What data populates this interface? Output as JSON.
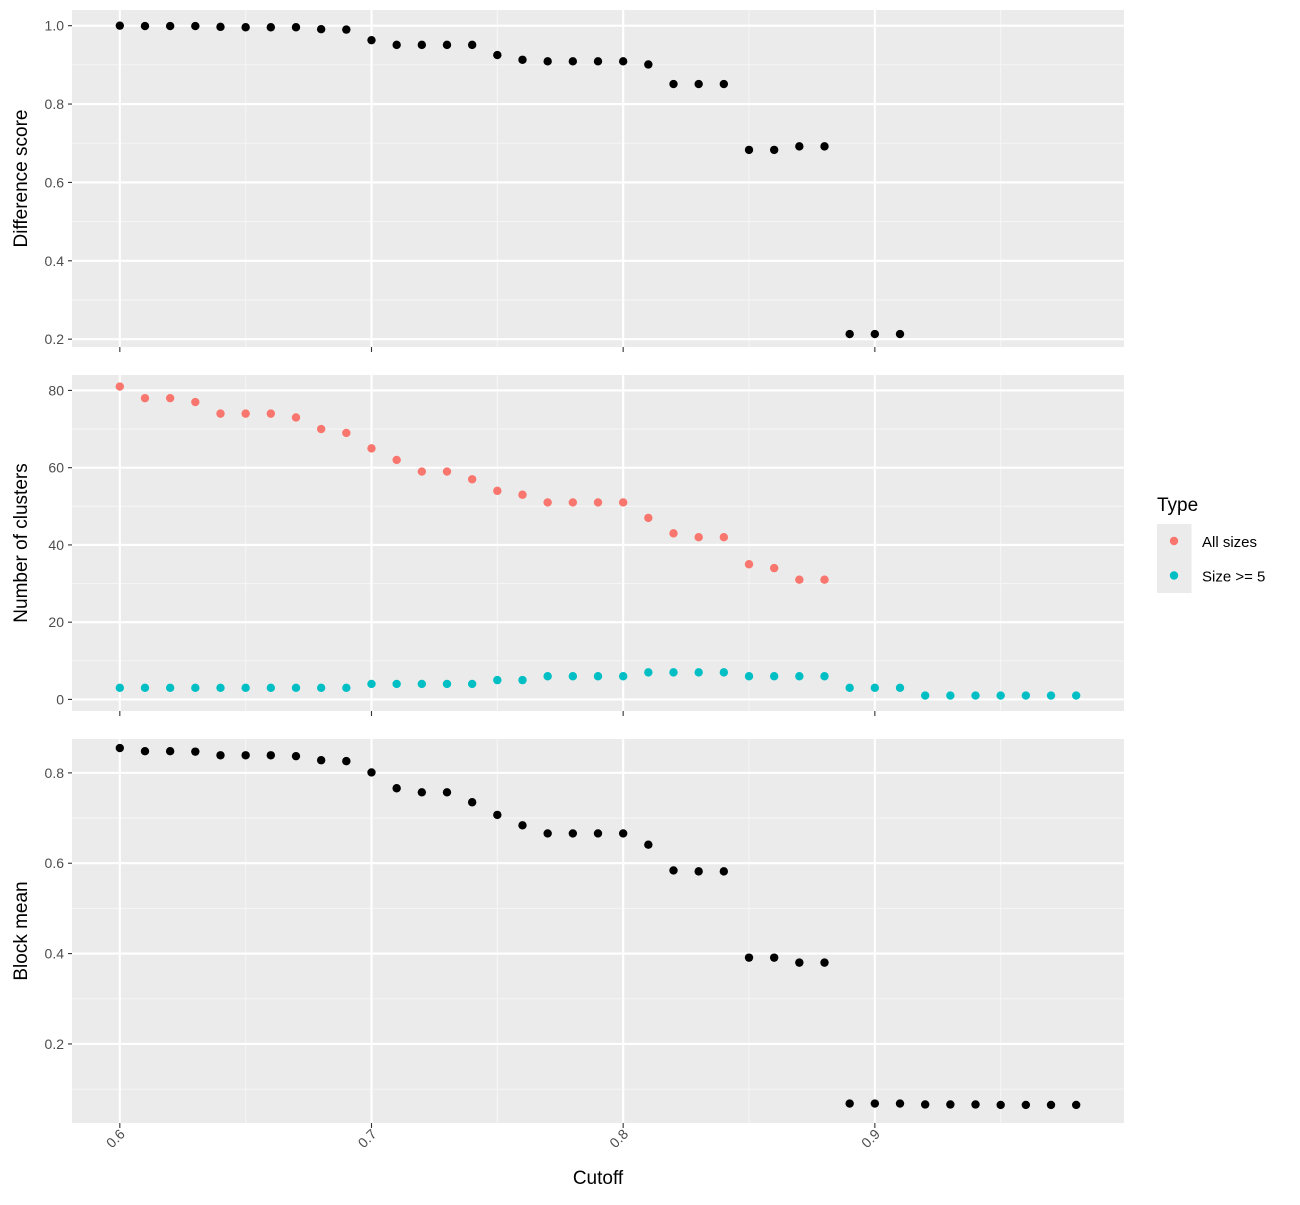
{
  "colors": {
    "panel_bg": "#EBEBEB",
    "grid_major": "#FFFFFF",
    "grid_minor": "#F5F5F5",
    "point_default": "#000000",
    "tick_text": "#4D4D4D",
    "title_text": "#000000"
  },
  "chart_data": [
    {
      "type": "scatter",
      "ylabel": "Difference score",
      "xlabel": "",
      "xlim": [
        0.581,
        0.999
      ],
      "ylim": [
        0.18,
        1.04
      ],
      "x_ticks": [
        0.6,
        0.7,
        0.8,
        0.9
      ],
      "y_ticks": [
        0.2,
        0.4,
        0.6,
        0.8,
        1.0
      ],
      "y_tick_labels": [
        "0.2",
        "0.4",
        "0.6",
        "0.8",
        "1.0"
      ],
      "grid": true,
      "x": [
        0.6,
        0.61,
        0.62,
        0.63,
        0.64,
        0.65,
        0.66,
        0.67,
        0.68,
        0.69,
        0.7,
        0.71,
        0.72,
        0.73,
        0.74,
        0.75,
        0.76,
        0.77,
        0.78,
        0.79,
        0.8,
        0.81,
        0.82,
        0.83,
        0.84,
        0.85,
        0.86,
        0.87,
        0.88,
        0.89,
        0.9,
        0.91
      ],
      "y": [
        1.0,
        0.999,
        0.999,
        0.999,
        0.997,
        0.996,
        0.996,
        0.996,
        0.991,
        0.99,
        0.963,
        0.951,
        0.951,
        0.951,
        0.951,
        0.925,
        0.913,
        0.909,
        0.909,
        0.909,
        0.909,
        0.901,
        0.851,
        0.851,
        0.851,
        0.683,
        0.683,
        0.692,
        0.692,
        0.213,
        0.213,
        0.213
      ]
    },
    {
      "type": "scatter",
      "ylabel": "Number of clusters",
      "xlabel": "",
      "xlim": [
        0.581,
        0.999
      ],
      "ylim": [
        -3,
        84
      ],
      "x_ticks": [
        0.6,
        0.7,
        0.8,
        0.9
      ],
      "y_ticks": [
        0,
        20,
        40,
        60,
        80
      ],
      "y_tick_labels": [
        "0",
        "20",
        "40",
        "60",
        "80"
      ],
      "grid": true,
      "legend": {
        "title": "Type",
        "placement": "right",
        "entries": [
          "All sizes",
          "Size >= 5"
        ]
      },
      "series": [
        {
          "name": "All sizes",
          "color": "#F8766D",
          "x": [
            0.6,
            0.61,
            0.62,
            0.63,
            0.64,
            0.65,
            0.66,
            0.67,
            0.68,
            0.69,
            0.7,
            0.71,
            0.72,
            0.73,
            0.74,
            0.75,
            0.76,
            0.77,
            0.78,
            0.79,
            0.8,
            0.81,
            0.82,
            0.83,
            0.84,
            0.85,
            0.86,
            0.87,
            0.88
          ],
          "y": [
            81,
            78,
            78,
            77,
            74,
            74,
            74,
            73,
            70,
            69,
            65,
            62,
            59,
            59,
            57,
            54,
            53,
            51,
            51,
            51,
            51,
            47,
            43,
            42,
            42,
            35,
            34,
            31,
            31
          ]
        },
        {
          "name": "Size >= 5",
          "color": "#00BFC4",
          "x": [
            0.6,
            0.61,
            0.62,
            0.63,
            0.64,
            0.65,
            0.66,
            0.67,
            0.68,
            0.69,
            0.7,
            0.71,
            0.72,
            0.73,
            0.74,
            0.75,
            0.76,
            0.77,
            0.78,
            0.79,
            0.8,
            0.81,
            0.82,
            0.83,
            0.84,
            0.85,
            0.86,
            0.87,
            0.88,
            0.89,
            0.9,
            0.91,
            0.92,
            0.93,
            0.94,
            0.95,
            0.96,
            0.97,
            0.98
          ],
          "y": [
            3,
            3,
            3,
            3,
            3,
            3,
            3,
            3,
            3,
            3,
            4,
            4,
            4,
            4,
            4,
            5,
            5,
            6,
            6,
            6,
            6,
            7,
            7,
            7,
            7,
            6,
            6,
            6,
            6,
            3,
            3,
            3,
            1,
            1,
            1,
            1,
            1,
            1,
            1
          ]
        }
      ]
    },
    {
      "type": "scatter",
      "ylabel": "Block mean",
      "xlabel": "Cutoff",
      "xlim": [
        0.581,
        0.999
      ],
      "ylim": [
        0.025,
        0.875
      ],
      "x_ticks": [
        0.6,
        0.7,
        0.8,
        0.9
      ],
      "x_tick_labels": [
        "0.6",
        "0.7",
        "0.8",
        "0.9"
      ],
      "y_ticks": [
        0.2,
        0.4,
        0.6,
        0.8
      ],
      "y_tick_labels": [
        "0.2",
        "0.4",
        "0.6",
        "0.8"
      ],
      "grid": true,
      "x": [
        0.6,
        0.61,
        0.62,
        0.63,
        0.64,
        0.65,
        0.66,
        0.67,
        0.68,
        0.69,
        0.7,
        0.71,
        0.72,
        0.73,
        0.74,
        0.75,
        0.76,
        0.77,
        0.78,
        0.79,
        0.8,
        0.81,
        0.82,
        0.83,
        0.84,
        0.85,
        0.86,
        0.87,
        0.88,
        0.89,
        0.9,
        0.91,
        0.92,
        0.93,
        0.94,
        0.95,
        0.96,
        0.97,
        0.98
      ],
      "y": [
        0.855,
        0.848,
        0.848,
        0.847,
        0.839,
        0.839,
        0.839,
        0.837,
        0.828,
        0.826,
        0.801,
        0.766,
        0.757,
        0.757,
        0.735,
        0.707,
        0.684,
        0.666,
        0.666,
        0.666,
        0.666,
        0.641,
        0.584,
        0.582,
        0.582,
        0.391,
        0.391,
        0.38,
        0.38,
        0.068,
        0.068,
        0.068,
        0.066,
        0.066,
        0.066,
        0.065,
        0.065,
        0.065,
        0.065
      ]
    }
  ]
}
